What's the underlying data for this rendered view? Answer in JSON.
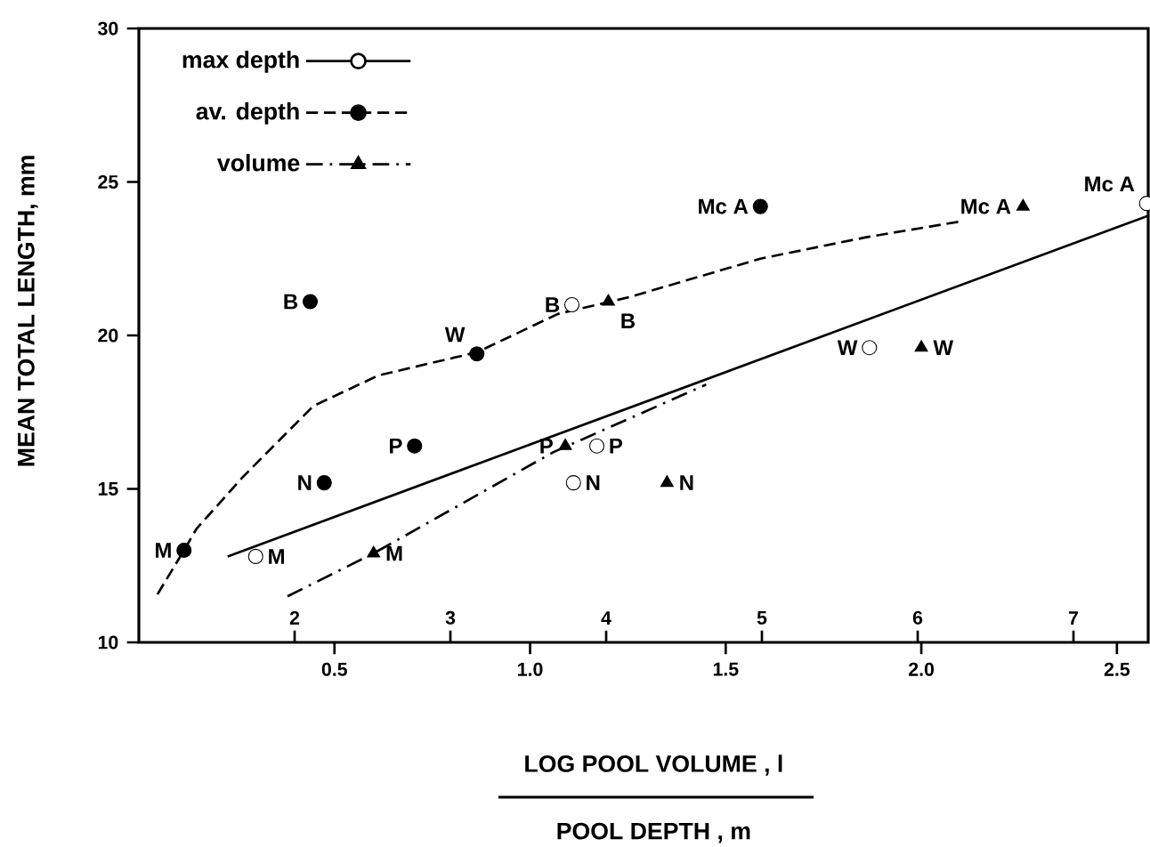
{
  "chart_data": {
    "type": "scatter",
    "xlabel": "LOG POOL VOLUME , l",
    "x2label": "POOL DEPTH , m",
    "ylabel": "MEAN TOTAL LENGTH, mm",
    "xlim": [
      0,
      2.58
    ],
    "xticks": [
      0.5,
      {
        "value": 1,
        "label": "1.0"
      },
      1.5,
      {
        "value": 2,
        "label": "2.0"
      },
      2.5
    ],
    "x2lim": [
      1,
      7.48
    ],
    "x2ticks": [
      2,
      3,
      4,
      5,
      6,
      7
    ],
    "ylim": [
      10,
      30
    ],
    "yticks": [
      10,
      15,
      20,
      25,
      30
    ],
    "grid": false,
    "legend": "top left",
    "series": [
      {
        "name": "max depth",
        "axis": "x2",
        "marker": "circle",
        "color": "#000000",
        "x": [
          1.75,
          3.78,
          3.79,
          3.94,
          5.69,
          7.47
        ],
        "values": [
          12.8,
          21.0,
          15.2,
          16.4,
          19.6,
          24.3
        ],
        "value_labels": [
          "M",
          "B",
          "N",
          "P",
          "W",
          "Mc A"
        ]
      },
      {
        "type": "line",
        "axis": "x2",
        "line_style": "solid",
        "marker": "none",
        "color": "#000000",
        "x": [
          1.57,
          7.48
        ],
        "values": [
          12.8,
          23.9
        ]
      },
      {
        "name": "av. depth",
        "axis": "x2",
        "marker": "circle",
        "color": "#000000",
        "x": [
          1.29,
          2.1,
          2.19,
          2.77,
          3.17,
          4.99
        ],
        "values": [
          13.0,
          21.1,
          15.2,
          16.4,
          19.4,
          24.2
        ],
        "value_labels": [
          "M",
          "B",
          "N",
          "P",
          "W",
          "Mc A"
        ]
      },
      {
        "type": "line",
        "axis": "x2",
        "line_style": "dashed",
        "marker": "none",
        "color": "#000000",
        "x": [
          1.1,
          1.29,
          1.37,
          1.67,
          2.12,
          2.54,
          3.17,
          3.69,
          4.15,
          4.99,
          5.67,
          6.26
        ],
        "values": [
          11.4,
          13.0,
          13.7,
          15.4,
          17.7,
          18.7,
          19.45,
          20.7,
          21.25,
          22.5,
          23.2,
          23.7
        ]
      },
      {
        "name": "volume",
        "marker": "triangle",
        "color": "#000000",
        "x": [
          0.6,
          1.09,
          1.2,
          1.35,
          2.0,
          2.26
        ],
        "values": [
          12.9,
          16.4,
          21.1,
          15.2,
          19.6,
          24.2
        ],
        "value_labels": [
          "M",
          "P",
          "B",
          "N",
          "W",
          "Mc A"
        ]
      },
      {
        "type": "line",
        "line_style": "dashdot",
        "marker": "none",
        "color": "#000000",
        "x": [
          0.38,
          0.6,
          1.06,
          1.45
        ],
        "values": [
          11.5,
          12.9,
          16.2,
          18.4
        ]
      }
    ]
  }
}
